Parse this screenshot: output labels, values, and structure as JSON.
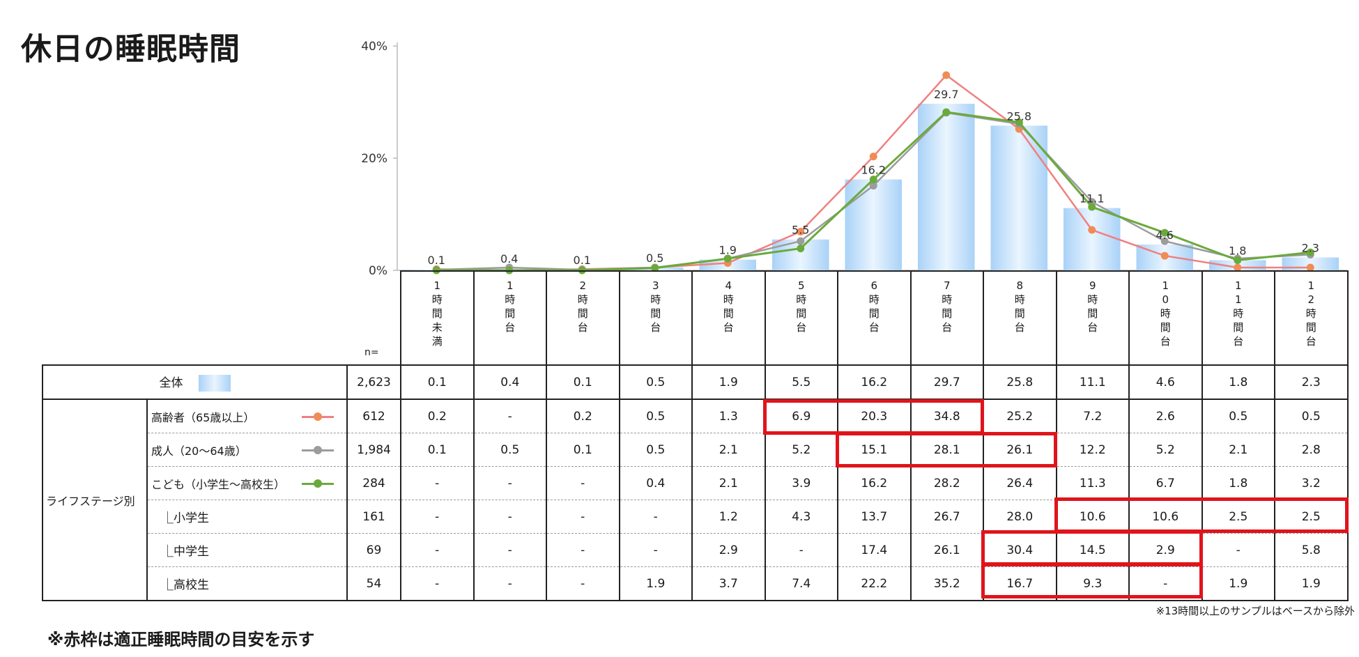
{
  "title": "休日の睡眠時間",
  "n_label": "n=",
  "footnote_right": "※13時間以上のサンプルはベースから除外",
  "footnote_left": "※赤枠は適正睡眠時間の目安を示す",
  "colors": {
    "bar": "#a9d2f7",
    "elderly": "#f08080",
    "elderly_dot": "#f08c56",
    "adult": "#9c9c9c",
    "child": "#6aaa3c",
    "redbox": "#e0141b"
  },
  "categories": [
    "1\n時\n間\n未\n満",
    "1\n時\n間\n台",
    "2\n時\n間\n台",
    "3\n時\n間\n台",
    "4\n時\n間\n台",
    "5\n時\n間\n台",
    "6\n時\n間\n台",
    "7\n時\n間\n台",
    "8\n時\n間\n台",
    "9\n時\n間\n台",
    "1\n0\n時\n間\n台",
    "1\n1\n時\n間\n台",
    "1\n2\n時\n間\n台"
  ],
  "chart_data": {
    "type": "bar",
    "title": "休日の睡眠時間",
    "ylim": [
      0,
      40
    ],
    "y_ticks": [
      "0%",
      "20%",
      "40%"
    ],
    "bar_labels": [
      "0.1",
      "0.4",
      "0.1",
      "0.5",
      "1.9",
      "5.5",
      "16.2",
      "29.7",
      "25.8",
      "11.1",
      "4.6",
      "1.8",
      "2.3"
    ],
    "series": [
      {
        "name": "全体",
        "kind": "bar",
        "values": [
          0.1,
          0.4,
          0.1,
          0.5,
          1.9,
          5.5,
          16.2,
          29.7,
          25.8,
          11.1,
          4.6,
          1.8,
          2.3
        ]
      },
      {
        "name": "高齢者（65歳以上）",
        "kind": "line",
        "values": [
          0.2,
          0,
          0.2,
          0.5,
          1.3,
          6.9,
          20.3,
          34.8,
          25.2,
          7.2,
          2.6,
          0.5,
          0.5
        ]
      },
      {
        "name": "成人（20～64歳）",
        "kind": "line",
        "values": [
          0.1,
          0.5,
          0.1,
          0.5,
          2.1,
          5.2,
          15.1,
          28.1,
          26.1,
          12.2,
          5.2,
          2.1,
          2.8
        ]
      },
      {
        "name": "こども（小学生～高校生）",
        "kind": "line",
        "values": [
          0,
          0,
          0,
          0.4,
          2.1,
          3.9,
          16.2,
          28.2,
          26.4,
          11.3,
          6.7,
          1.8,
          3.2
        ]
      }
    ]
  },
  "table": {
    "total_row": {
      "label": "全体",
      "n": "2,623",
      "values": [
        "0.1",
        "0.4",
        "0.1",
        "0.5",
        "1.9",
        "5.5",
        "16.2",
        "29.7",
        "25.8",
        "11.1",
        "4.6",
        "1.8",
        "2.3"
      ]
    },
    "group_label": "ライフステージ別",
    "rows": [
      {
        "label": "高齢者（65歳以上）",
        "n": "612",
        "legend": "elderly",
        "values": [
          "0.2",
          "-",
          "0.2",
          "0.5",
          "1.3",
          "6.9",
          "20.3",
          "34.8",
          "25.2",
          "7.2",
          "2.6",
          "0.5",
          "0.5"
        ]
      },
      {
        "label": "成人（20～64歳）",
        "n": "1,984",
        "legend": "adult",
        "values": [
          "0.1",
          "0.5",
          "0.1",
          "0.5",
          "2.1",
          "5.2",
          "15.1",
          "28.1",
          "26.1",
          "12.2",
          "5.2",
          "2.1",
          "2.8"
        ]
      },
      {
        "label": "こども（小学生～高校生）",
        "n": "284",
        "legend": "child",
        "values": [
          "-",
          "-",
          "-",
          "0.4",
          "2.1",
          "3.9",
          "16.2",
          "28.2",
          "26.4",
          "11.3",
          "6.7",
          "1.8",
          "3.2"
        ]
      },
      {
        "label": "⎿小学生",
        "n": "161",
        "indent": true,
        "values": [
          "-",
          "-",
          "-",
          "-",
          "1.2",
          "4.3",
          "13.7",
          "26.7",
          "28.0",
          "10.6",
          "10.6",
          "2.5",
          "2.5"
        ]
      },
      {
        "label": "⎿中学生",
        "n": "69",
        "indent": true,
        "values": [
          "-",
          "-",
          "-",
          "-",
          "2.9",
          "-",
          "17.4",
          "26.1",
          "30.4",
          "14.5",
          "2.9",
          "-",
          "5.8"
        ]
      },
      {
        "label": "⎿高校生",
        "n": "54",
        "indent": true,
        "values": [
          "-",
          "-",
          "-",
          "1.9",
          "3.7",
          "7.4",
          "22.2",
          "35.2",
          "16.7",
          "9.3",
          "-",
          "1.9",
          "1.9"
        ]
      }
    ]
  },
  "highlight_boxes": [
    {
      "row": 0,
      "col_from": 5,
      "col_to": 7
    },
    {
      "row": 1,
      "col_from": 6,
      "col_to": 8
    },
    {
      "row": 3,
      "col_from": 9,
      "col_to": 12
    },
    {
      "row": 4,
      "col_from": 8,
      "col_to": 10
    },
    {
      "row": 5,
      "col_from": 8,
      "col_to": 10
    }
  ]
}
